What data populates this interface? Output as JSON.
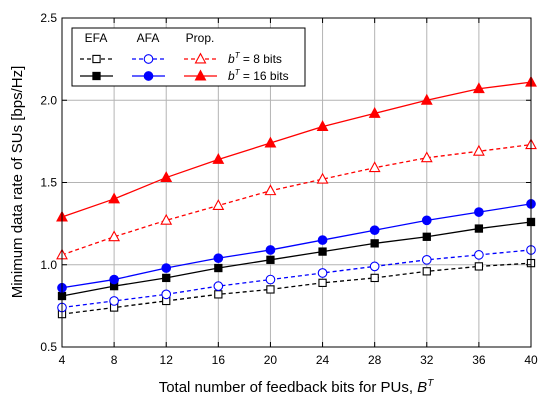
{
  "chart_data": {
    "type": "line",
    "title": "",
    "xlabel": "Total number of feedback bits for PUs, ",
    "xlabel_sym_base": "B",
    "xlabel_sym_sup": "T",
    "ylabel": "Minimum data rate of SUs [bps/Hz]",
    "x": [
      4,
      8,
      12,
      16,
      20,
      24,
      28,
      32,
      36,
      40
    ],
    "xlim": [
      4,
      40
    ],
    "ylim": [
      0.5,
      2.5
    ],
    "xticks": [
      4,
      8,
      12,
      16,
      20,
      24,
      28,
      32,
      36,
      40
    ],
    "yticks": [
      0.5,
      1.0,
      1.5,
      2.0,
      2.5
    ],
    "xtick_labels": [
      "4",
      "8",
      "12",
      "16",
      "20",
      "24",
      "28",
      "32",
      "36",
      "40"
    ],
    "ytick_labels": [
      "0.5",
      "1.0",
      "1.5",
      "2.0",
      "2.5"
    ],
    "grid": true,
    "legend": {
      "placement": "top-left",
      "headers": [
        "EFA",
        "AFA",
        "Prop."
      ],
      "rows": [
        {
          "sym_base": "b",
          "sym_sup": "T",
          "rest": " = 8 bits"
        },
        {
          "sym_base": "b",
          "sym_sup": "T",
          "rest": " = 16 bits"
        }
      ]
    },
    "series": [
      {
        "scheme": "EFA",
        "bits": 8,
        "color": "#000000",
        "dashed": true,
        "marker": "square",
        "filled": false,
        "values": [
          0.7,
          0.74,
          0.78,
          0.82,
          0.85,
          0.89,
          0.92,
          0.96,
          0.99,
          1.01
        ]
      },
      {
        "scheme": "AFA",
        "bits": 8,
        "color": "#0000ff",
        "dashed": true,
        "marker": "circle",
        "filled": false,
        "values": [
          0.74,
          0.78,
          0.82,
          0.87,
          0.91,
          0.95,
          0.99,
          1.03,
          1.06,
          1.09
        ]
      },
      {
        "scheme": "Prop.",
        "bits": 8,
        "color": "#ff0000",
        "dashed": true,
        "marker": "triangle",
        "filled": false,
        "values": [
          1.06,
          1.17,
          1.27,
          1.36,
          1.45,
          1.52,
          1.59,
          1.65,
          1.69,
          1.73
        ]
      },
      {
        "scheme": "EFA",
        "bits": 16,
        "color": "#000000",
        "dashed": false,
        "marker": "square",
        "filled": true,
        "values": [
          0.81,
          0.87,
          0.92,
          0.98,
          1.03,
          1.08,
          1.13,
          1.17,
          1.22,
          1.26
        ]
      },
      {
        "scheme": "AFA",
        "bits": 16,
        "color": "#0000ff",
        "dashed": false,
        "marker": "circle",
        "filled": true,
        "values": [
          0.86,
          0.91,
          0.98,
          1.04,
          1.09,
          1.15,
          1.21,
          1.27,
          1.32,
          1.37
        ]
      },
      {
        "scheme": "Prop.",
        "bits": 16,
        "color": "#ff0000",
        "dashed": false,
        "marker": "triangle",
        "filled": true,
        "values": [
          1.29,
          1.4,
          1.53,
          1.64,
          1.74,
          1.84,
          1.92,
          2.0,
          2.07,
          2.11
        ]
      }
    ]
  }
}
